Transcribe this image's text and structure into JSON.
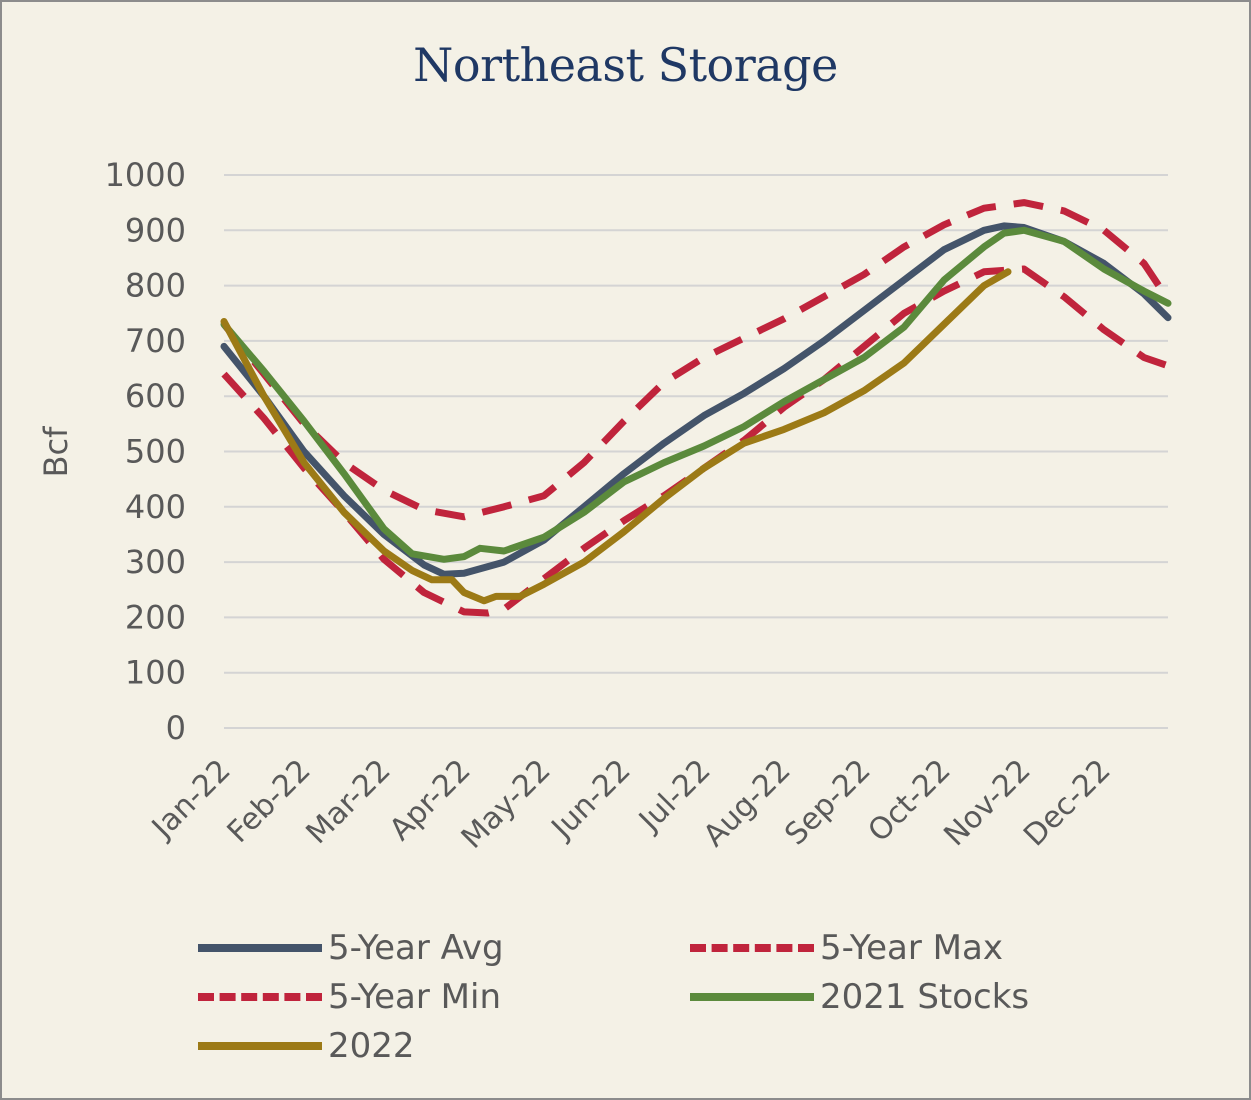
{
  "chart_data": {
    "type": "line",
    "title": "Northeast Storage",
    "xlabel": "",
    "ylabel": "Bcf",
    "ylim": [
      0,
      1000
    ],
    "yticks": [
      0,
      100,
      200,
      300,
      400,
      500,
      600,
      700,
      800,
      900,
      1000
    ],
    "grid": true,
    "legend_position": "bottom",
    "x_tick_labels": [
      "Jan-22",
      "Feb-22",
      "Mar-22",
      "Apr-22",
      "May-22",
      "Jun-22",
      "Jul-22",
      "Aug-22",
      "Sep-22",
      "Oct-22",
      "Nov-22",
      "Dec-22"
    ],
    "x_range": [
      "Jan-22",
      "Dec-22 end"
    ],
    "series": [
      {
        "name": "5-Year Avg",
        "color": "#44546a",
        "dash": "solid",
        "points": [
          [
            0,
            690
          ],
          [
            0.5,
            600
          ],
          [
            1,
            500
          ],
          [
            1.5,
            420
          ],
          [
            2,
            350
          ],
          [
            2.5,
            295
          ],
          [
            2.75,
            278
          ],
          [
            3,
            280
          ],
          [
            3.5,
            300
          ],
          [
            4,
            340
          ],
          [
            4.5,
            400
          ],
          [
            5,
            460
          ],
          [
            5.5,
            515
          ],
          [
            6,
            565
          ],
          [
            6.5,
            605
          ],
          [
            7,
            650
          ],
          [
            7.5,
            700
          ],
          [
            8,
            755
          ],
          [
            8.5,
            810
          ],
          [
            9,
            865
          ],
          [
            9.5,
            900
          ],
          [
            9.75,
            908
          ],
          [
            10,
            905
          ],
          [
            10.5,
            880
          ],
          [
            11,
            840
          ],
          [
            11.5,
            785
          ],
          [
            11.8,
            742
          ]
        ]
      },
      {
        "name": "5-Year Max",
        "color": "#c0243c",
        "dash": "dashed",
        "points": [
          [
            0,
            730
          ],
          [
            0.5,
            640
          ],
          [
            1,
            550
          ],
          [
            1.5,
            480
          ],
          [
            2,
            430
          ],
          [
            2.5,
            395
          ],
          [
            3,
            382
          ],
          [
            3.5,
            400
          ],
          [
            4,
            420
          ],
          [
            4.5,
            480
          ],
          [
            5,
            555
          ],
          [
            5.5,
            625
          ],
          [
            6,
            670
          ],
          [
            6.5,
            705
          ],
          [
            7,
            740
          ],
          [
            7.5,
            780
          ],
          [
            8,
            820
          ],
          [
            8.5,
            870
          ],
          [
            9,
            910
          ],
          [
            9.5,
            940
          ],
          [
            10,
            950
          ],
          [
            10.5,
            935
          ],
          [
            11,
            900
          ],
          [
            11.5,
            840
          ],
          [
            11.8,
            775
          ]
        ]
      },
      {
        "name": "5-Year Min",
        "color": "#c0243c",
        "dash": "dashed",
        "points": [
          [
            0,
            640
          ],
          [
            0.5,
            560
          ],
          [
            1,
            470
          ],
          [
            1.5,
            390
          ],
          [
            2,
            305
          ],
          [
            2.5,
            245
          ],
          [
            3,
            210
          ],
          [
            3.3,
            208
          ],
          [
            3.5,
            215
          ],
          [
            4,
            270
          ],
          [
            4.5,
            325
          ],
          [
            5,
            375
          ],
          [
            5.5,
            420
          ],
          [
            6,
            470
          ],
          [
            6.5,
            520
          ],
          [
            7,
            580
          ],
          [
            7.5,
            630
          ],
          [
            8,
            690
          ],
          [
            8.5,
            750
          ],
          [
            9,
            790
          ],
          [
            9.5,
            825
          ],
          [
            10,
            830
          ],
          [
            10.5,
            780
          ],
          [
            11,
            720
          ],
          [
            11.5,
            670
          ],
          [
            11.8,
            655
          ]
        ]
      },
      {
        "name": "2021 Stocks",
        "color": "#5b8a3c",
        "dash": "solid",
        "points": [
          [
            0,
            730
          ],
          [
            0.5,
            645
          ],
          [
            1,
            555
          ],
          [
            1.5,
            460
          ],
          [
            2,
            360
          ],
          [
            2.35,
            315
          ],
          [
            2.75,
            305
          ],
          [
            3,
            310
          ],
          [
            3.2,
            325
          ],
          [
            3.5,
            320
          ],
          [
            4,
            345
          ],
          [
            4.5,
            390
          ],
          [
            5,
            445
          ],
          [
            5.5,
            480
          ],
          [
            6,
            510
          ],
          [
            6.5,
            545
          ],
          [
            7,
            590
          ],
          [
            7.5,
            630
          ],
          [
            8,
            670
          ],
          [
            8.5,
            725
          ],
          [
            9,
            810
          ],
          [
            9.5,
            870
          ],
          [
            9.75,
            895
          ],
          [
            10,
            900
          ],
          [
            10.5,
            880
          ],
          [
            11,
            830
          ],
          [
            11.5,
            790
          ],
          [
            11.8,
            768
          ]
        ]
      },
      {
        "name": "2022",
        "color": "#9c7a16",
        "dash": "solid",
        "points": [
          [
            0,
            735
          ],
          [
            0.5,
            600
          ],
          [
            1,
            480
          ],
          [
            1.5,
            390
          ],
          [
            2,
            320
          ],
          [
            2.35,
            285
          ],
          [
            2.6,
            268
          ],
          [
            2.85,
            268
          ],
          [
            3,
            245
          ],
          [
            3.25,
            230
          ],
          [
            3.4,
            238
          ],
          [
            3.7,
            238
          ],
          [
            4,
            260
          ],
          [
            4.5,
            300
          ],
          [
            5,
            355
          ],
          [
            5.5,
            415
          ],
          [
            6,
            470
          ],
          [
            6.5,
            515
          ],
          [
            7,
            540
          ],
          [
            7.5,
            570
          ],
          [
            8,
            610
          ],
          [
            8.5,
            660
          ],
          [
            9,
            730
          ],
          [
            9.5,
            800
          ],
          [
            9.8,
            825
          ]
        ]
      }
    ]
  }
}
